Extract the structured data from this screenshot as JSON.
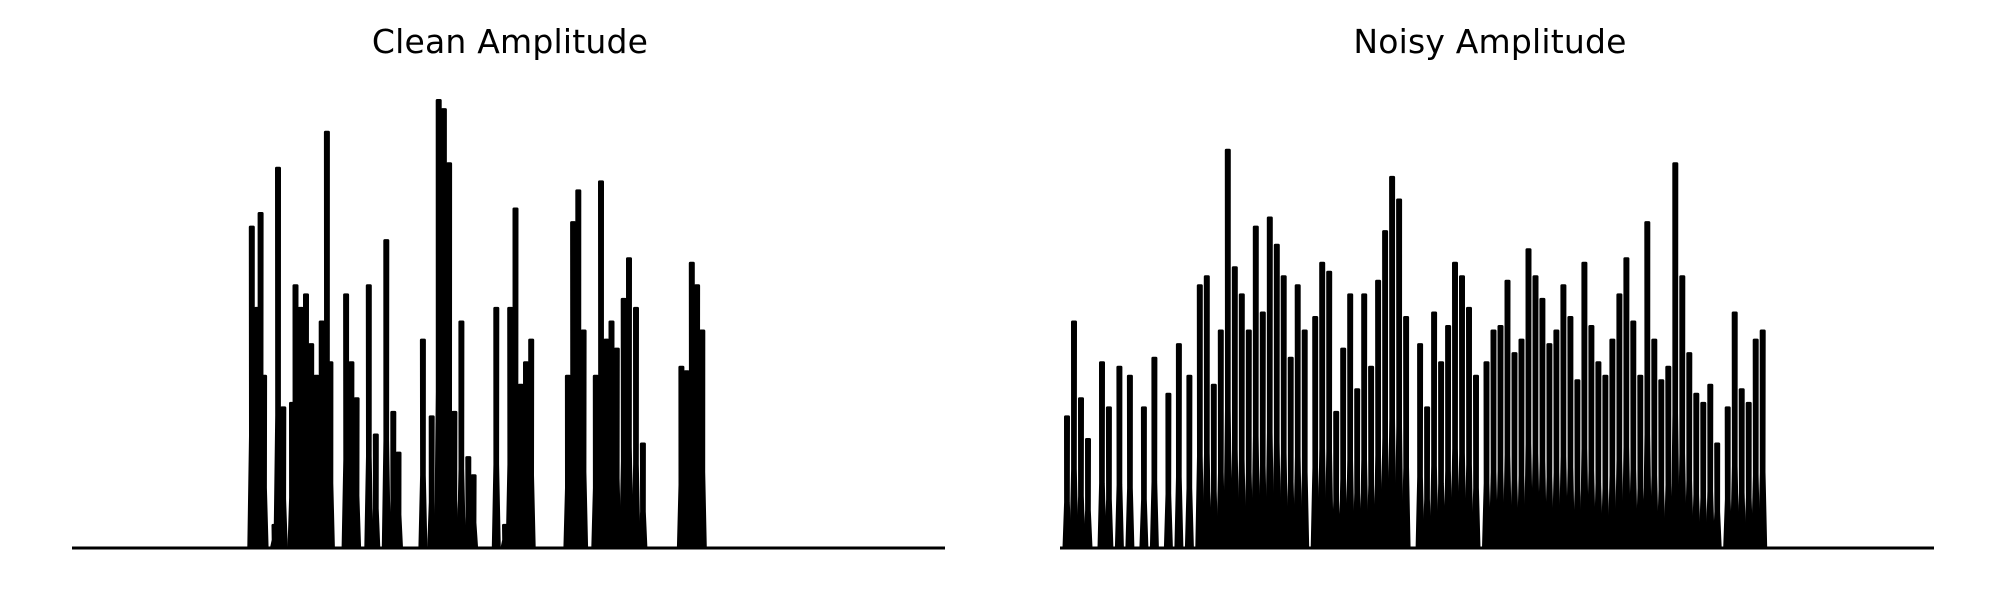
{
  "chart_data": [
    {
      "type": "area",
      "title": "Clean Amplitude",
      "xlabel": "",
      "ylabel": "",
      "grid": false,
      "axes_visible": false,
      "color": "#000000",
      "xlim": [
        0,
        500
      ],
      "ylim": [
        0,
        1.0
      ],
      "peaks": [
        [
          103,
          0.71
        ],
        [
          106,
          0.53
        ],
        [
          108,
          0.74
        ],
        [
          110,
          0.38
        ],
        [
          116,
          0.05
        ],
        [
          118,
          0.84
        ],
        [
          121,
          0.31
        ],
        [
          126,
          0.32
        ],
        [
          128,
          0.58
        ],
        [
          131,
          0.53
        ],
        [
          134,
          0.56
        ],
        [
          137,
          0.45
        ],
        [
          140,
          0.38
        ],
        [
          143,
          0.5
        ],
        [
          146,
          0.92
        ],
        [
          148,
          0.41
        ],
        [
          157,
          0.56
        ],
        [
          160,
          0.41
        ],
        [
          163,
          0.33
        ],
        [
          170,
          0.58
        ],
        [
          174,
          0.25
        ],
        [
          180,
          0.68
        ],
        [
          184,
          0.3
        ],
        [
          187,
          0.21
        ],
        [
          201,
          0.46
        ],
        [
          206,
          0.29
        ],
        [
          210,
          0.99
        ],
        [
          213,
          0.97
        ],
        [
          216,
          0.85
        ],
        [
          219,
          0.3
        ],
        [
          223,
          0.5
        ],
        [
          227,
          0.2
        ],
        [
          230,
          0.16
        ],
        [
          243,
          0.53
        ],
        [
          248,
          0.05
        ],
        [
          251,
          0.53
        ],
        [
          254,
          0.75
        ],
        [
          257,
          0.36
        ],
        [
          260,
          0.41
        ],
        [
          263,
          0.46
        ],
        [
          284,
          0.38
        ],
        [
          287,
          0.72
        ],
        [
          290,
          0.79
        ],
        [
          293,
          0.48
        ],
        [
          300,
          0.38
        ],
        [
          303,
          0.81
        ],
        [
          306,
          0.46
        ],
        [
          309,
          0.5
        ],
        [
          312,
          0.44
        ],
        [
          316,
          0.55
        ],
        [
          319,
          0.64
        ],
        [
          323,
          0.53
        ],
        [
          327,
          0.23
        ],
        [
          349,
          0.4
        ],
        [
          352,
          0.39
        ],
        [
          355,
          0.63
        ],
        [
          358,
          0.58
        ],
        [
          361,
          0.48
        ]
      ]
    },
    {
      "type": "area",
      "title": "Noisy Amplitude",
      "xlabel": "",
      "ylabel": "",
      "grid": false,
      "axes_visible": false,
      "color": "#000000",
      "xlim": [
        0,
        500
      ],
      "ylim": [
        0,
        1.0
      ],
      "peaks": [
        [
          4,
          0.29
        ],
        [
          8,
          0.5
        ],
        [
          12,
          0.33
        ],
        [
          16,
          0.24
        ],
        [
          24,
          0.41
        ],
        [
          28,
          0.31
        ],
        [
          34,
          0.4
        ],
        [
          40,
          0.38
        ],
        [
          48,
          0.31
        ],
        [
          54,
          0.42
        ],
        [
          62,
          0.34
        ],
        [
          68,
          0.45
        ],
        [
          74,
          0.38
        ],
        [
          80,
          0.58
        ],
        [
          84,
          0.6
        ],
        [
          88,
          0.36
        ],
        [
          92,
          0.48
        ],
        [
          96,
          0.88
        ],
        [
          100,
          0.62
        ],
        [
          104,
          0.56
        ],
        [
          108,
          0.48
        ],
        [
          112,
          0.71
        ],
        [
          116,
          0.52
        ],
        [
          120,
          0.73
        ],
        [
          124,
          0.67
        ],
        [
          128,
          0.6
        ],
        [
          132,
          0.42
        ],
        [
          136,
          0.58
        ],
        [
          140,
          0.48
        ],
        [
          146,
          0.51
        ],
        [
          150,
          0.63
        ],
        [
          154,
          0.61
        ],
        [
          158,
          0.3
        ],
        [
          162,
          0.44
        ],
        [
          166,
          0.56
        ],
        [
          170,
          0.35
        ],
        [
          174,
          0.56
        ],
        [
          178,
          0.4
        ],
        [
          182,
          0.59
        ],
        [
          186,
          0.7
        ],
        [
          190,
          0.82
        ],
        [
          194,
          0.77
        ],
        [
          198,
          0.51
        ],
        [
          206,
          0.45
        ],
        [
          210,
          0.31
        ],
        [
          214,
          0.52
        ],
        [
          218,
          0.41
        ],
        [
          222,
          0.49
        ],
        [
          226,
          0.63
        ],
        [
          230,
          0.6
        ],
        [
          234,
          0.53
        ],
        [
          238,
          0.38
        ],
        [
          244,
          0.41
        ],
        [
          248,
          0.48
        ],
        [
          252,
          0.49
        ],
        [
          256,
          0.59
        ],
        [
          260,
          0.43
        ],
        [
          264,
          0.46
        ],
        [
          268,
          0.66
        ],
        [
          272,
          0.6
        ],
        [
          276,
          0.55
        ],
        [
          280,
          0.45
        ],
        [
          284,
          0.48
        ],
        [
          288,
          0.58
        ],
        [
          292,
          0.51
        ],
        [
          296,
          0.37
        ],
        [
          300,
          0.63
        ],
        [
          304,
          0.49
        ],
        [
          308,
          0.41
        ],
        [
          312,
          0.38
        ],
        [
          316,
          0.46
        ],
        [
          320,
          0.56
        ],
        [
          324,
          0.64
        ],
        [
          328,
          0.5
        ],
        [
          332,
          0.38
        ],
        [
          336,
          0.72
        ],
        [
          340,
          0.46
        ],
        [
          344,
          0.37
        ],
        [
          348,
          0.4
        ],
        [
          352,
          0.85
        ],
        [
          356,
          0.6
        ],
        [
          360,
          0.43
        ],
        [
          364,
          0.34
        ],
        [
          368,
          0.32
        ],
        [
          372,
          0.36
        ],
        [
          376,
          0.23
        ],
        [
          382,
          0.31
        ],
        [
          386,
          0.52
        ],
        [
          390,
          0.35
        ],
        [
          394,
          0.32
        ],
        [
          398,
          0.46
        ],
        [
          402,
          0.48
        ]
      ]
    }
  ]
}
